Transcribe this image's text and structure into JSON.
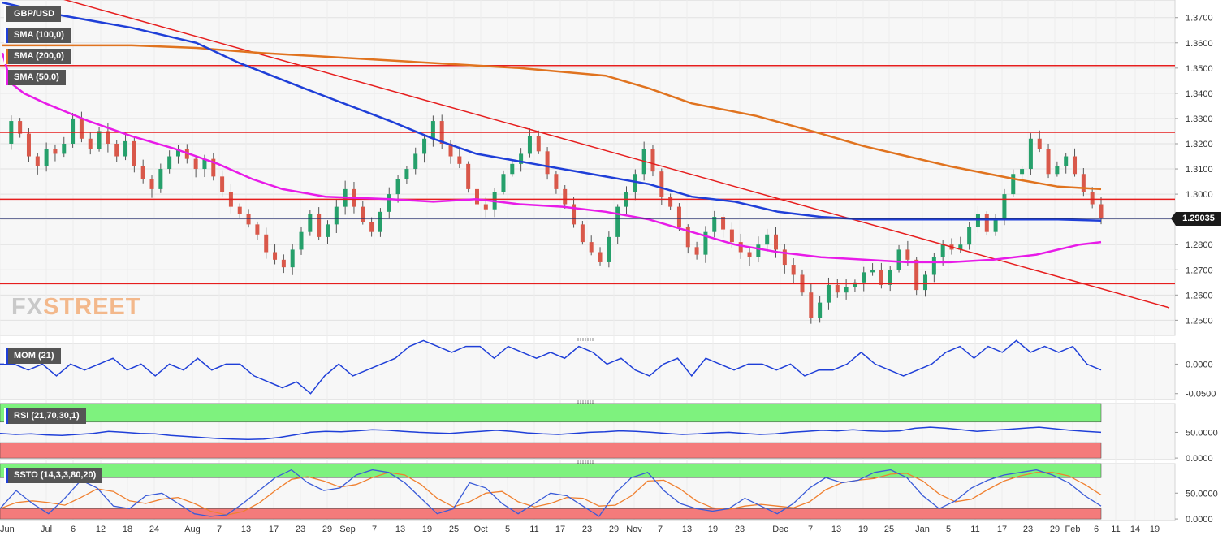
{
  "legend": {
    "symbol": "GBP/USD",
    "sma100": "SMA (100,0)",
    "sma200": "SMA (200,0)",
    "sma50": "SMA (50,0)",
    "mom": "MOM (21)",
    "rsi": "RSI (21,70,30,1)",
    "ssto": "SSTO (14,3,3,80,20)"
  },
  "logo": {
    "part1": "FX",
    "part2": "STREET"
  },
  "last_price": "1.29035",
  "colors": {
    "up": "#26a06b",
    "down": "#d9584a",
    "sma100": "#1f3fd8",
    "sma200": "#e0731f",
    "sma50": "#e81be8",
    "hline": "#e61e1e",
    "overbought": "#7ef27e",
    "oversold": "#f47b7b",
    "mom": "#1f3fd8",
    "ssto_k": "#3a5bd8",
    "ssto_d": "#f08030"
  },
  "chart_data": [
    {
      "type": "candlestick",
      "title": "GBP/USD",
      "ylim": [
        1.244,
        1.377
      ],
      "y_ticks": [
        "1.2500",
        "1.2600",
        "1.2700",
        "1.2800",
        "1.2900",
        "1.3000",
        "1.3100",
        "1.3200",
        "1.3300",
        "1.3400",
        "1.3500",
        "1.3600",
        "1.3700"
      ],
      "x_ticks": [
        "Jun",
        "Jul",
        "6",
        "12",
        "18",
        "24",
        "Aug",
        "7",
        "13",
        "17",
        "23",
        "29",
        "Sep",
        "7",
        "13",
        "19",
        "25",
        "Oct",
        "5",
        "11",
        "17",
        "23",
        "29",
        "Nov",
        "7",
        "13",
        "19",
        "23",
        "Dec",
        "7",
        "13",
        "19",
        "25",
        "Jan",
        "5",
        "11",
        "17",
        "23",
        "29",
        "Feb",
        "6",
        "11",
        "14",
        "19"
      ],
      "close_path": [
        1.32,
        1.329,
        1.324,
        1.315,
        1.311,
        1.318,
        1.316,
        1.32,
        1.33,
        1.322,
        1.318,
        1.325,
        1.32,
        1.315,
        1.321,
        1.311,
        1.306,
        1.302,
        1.31,
        1.315,
        1.318,
        1.314,
        1.31,
        1.314,
        1.307,
        1.301,
        1.295,
        1.292,
        1.288,
        1.284,
        1.277,
        1.274,
        1.271,
        1.278,
        1.285,
        1.292,
        1.283,
        1.288,
        1.295,
        1.302,
        1.295,
        1.289,
        1.285,
        1.293,
        1.3,
        1.306,
        1.31,
        1.316,
        1.322,
        1.329,
        1.32,
        1.315,
        1.312,
        1.302,
        1.296,
        1.294,
        1.301,
        1.308,
        1.312,
        1.316,
        1.323,
        1.317,
        1.308,
        1.302,
        1.296,
        1.288,
        1.281,
        1.277,
        1.273,
        1.283,
        1.295,
        1.301,
        1.308,
        1.318,
        1.309,
        1.299,
        1.295,
        1.287,
        1.279,
        1.276,
        1.285,
        1.291,
        1.286,
        1.281,
        1.277,
        1.275,
        1.28,
        1.284,
        1.278,
        1.272,
        1.268,
        1.261,
        1.251,
        1.257,
        1.264,
        1.261,
        1.263,
        1.265,
        1.269,
        1.27,
        1.264,
        1.27,
        1.278,
        1.274,
        1.262,
        1.268,
        1.275,
        1.28,
        1.278,
        1.28,
        1.287,
        1.292,
        1.285,
        1.29,
        1.3,
        1.308,
        1.31,
        1.322,
        1.318,
        1.308,
        1.311,
        1.315,
        1.308,
        1.301,
        1.296,
        1.2903
      ],
      "sma50": [
        [
          0,
          1.356
        ],
        [
          2,
          1.344
        ],
        [
          5,
          1.34
        ],
        [
          10,
          1.336
        ],
        [
          20,
          1.329
        ],
        [
          30,
          1.323
        ],
        [
          40,
          1.318
        ],
        [
          50,
          1.312
        ],
        [
          58,
          1.306
        ],
        [
          65,
          1.302
        ],
        [
          75,
          1.299
        ],
        [
          90,
          1.298
        ],
        [
          100,
          1.297
        ],
        [
          110,
          1.298
        ],
        [
          115,
          1.297
        ],
        [
          120,
          1.296
        ],
        [
          130,
          1.295
        ],
        [
          140,
          1.293
        ],
        [
          150,
          1.29
        ],
        [
          160,
          1.285
        ],
        [
          170,
          1.28
        ],
        [
          180,
          1.277
        ],
        [
          190,
          1.275
        ],
        [
          200,
          1.274
        ],
        [
          210,
          1.273
        ],
        [
          220,
          1.273
        ],
        [
          230,
          1.274
        ],
        [
          240,
          1.276
        ],
        [
          250,
          1.28
        ],
        [
          255,
          1.281
        ]
      ],
      "sma100": [
        [
          0,
          1.376
        ],
        [
          10,
          1.372
        ],
        [
          30,
          1.366
        ],
        [
          45,
          1.36
        ],
        [
          55,
          1.352
        ],
        [
          70,
          1.342
        ],
        [
          90,
          1.329
        ],
        [
          100,
          1.322
        ],
        [
          110,
          1.316
        ],
        [
          120,
          1.313
        ],
        [
          130,
          1.31
        ],
        [
          140,
          1.307
        ],
        [
          150,
          1.304
        ],
        [
          160,
          1.299
        ],
        [
          170,
          1.297
        ],
        [
          180,
          1.293
        ],
        [
          190,
          1.291
        ],
        [
          200,
          1.29
        ],
        [
          215,
          1.29
        ],
        [
          235,
          1.29
        ],
        [
          245,
          1.29
        ],
        [
          255,
          1.2895
        ]
      ],
      "sma200": [
        [
          0,
          1.359
        ],
        [
          20,
          1.359
        ],
        [
          30,
          1.359
        ],
        [
          45,
          1.358
        ],
        [
          60,
          1.356
        ],
        [
          80,
          1.354
        ],
        [
          100,
          1.352
        ],
        [
          120,
          1.35
        ],
        [
          140,
          1.347
        ],
        [
          150,
          1.342
        ],
        [
          160,
          1.336
        ],
        [
          175,
          1.331
        ],
        [
          190,
          1.324
        ],
        [
          200,
          1.319
        ],
        [
          210,
          1.315
        ],
        [
          220,
          1.311
        ],
        [
          235,
          1.306
        ],
        [
          245,
          1.303
        ],
        [
          255,
          1.302
        ]
      ],
      "horizontal_levels": [
        1.351,
        1.3245,
        1.298,
        1.2645
      ],
      "trendline": [
        [
          0,
          1.384
        ],
        [
          275,
          1.255
        ]
      ]
    },
    {
      "type": "line",
      "title": "MOM (21)",
      "ylim": [
        -0.06,
        0.035
      ],
      "y_ticks": [
        "0.0000",
        "-0.0500"
      ],
      "values": [
        0.0,
        0.0,
        -0.01,
        0.0,
        -0.02,
        0.0,
        -0.01,
        0.0,
        0.01,
        -0.01,
        0.0,
        -0.02,
        0.0,
        -0.01,
        0.01,
        -0.01,
        0.0,
        0.0,
        -0.02,
        -0.03,
        -0.04,
        -0.03,
        -0.05,
        -0.02,
        0.0,
        -0.02,
        -0.01,
        0.0,
        0.01,
        0.03,
        0.04,
        0.03,
        0.02,
        0.03,
        0.03,
        0.01,
        0.03,
        0.02,
        0.01,
        0.02,
        0.01,
        0.03,
        0.02,
        0.0,
        0.01,
        -0.01,
        -0.02,
        0.0,
        0.01,
        -0.02,
        0.01,
        0.0,
        -0.01,
        0.0,
        0.0,
        -0.01,
        0.0,
        -0.02,
        -0.01,
        -0.01,
        0.0,
        0.02,
        0.0,
        -0.01,
        -0.02,
        -0.01,
        0.0,
        0.02,
        0.03,
        0.01,
        0.03,
        0.02,
        0.04,
        0.02,
        0.03,
        0.02,
        0.03,
        0.0,
        -0.01
      ]
    },
    {
      "type": "line",
      "title": "RSI (21,70,30,1)",
      "ylim": [
        -3,
        106
      ],
      "y_ticks": [
        "50.0000",
        "0.0000"
      ],
      "bands": {
        "overbought": [
          70,
          106
        ],
        "oversold": [
          0,
          30
        ]
      },
      "values": [
        48,
        46,
        47,
        45,
        44,
        46,
        48,
        52,
        50,
        48,
        47,
        44,
        42,
        40,
        38,
        37,
        36,
        37,
        40,
        45,
        50,
        52,
        51,
        53,
        55,
        54,
        52,
        50,
        49,
        48,
        50,
        52,
        54,
        52,
        49,
        47,
        46,
        48,
        50,
        51,
        53,
        52,
        50,
        48,
        46,
        47,
        49,
        50,
        48,
        46,
        47,
        50,
        52,
        54,
        53,
        55,
        53,
        52,
        53,
        58,
        60,
        58,
        55,
        52,
        54,
        56,
        58,
        60,
        57,
        54,
        52,
        50
      ]
    },
    {
      "type": "line",
      "title": "SSTO (14,3,3,80,20)",
      "ylim": [
        -3,
        107
      ],
      "y_ticks": [
        "50.0000",
        "0.0000"
      ],
      "bands": {
        "overbought": [
          80,
          107
        ],
        "oversold": [
          0,
          20
        ]
      },
      "k_values": [
        20,
        55,
        30,
        10,
        40,
        75,
        60,
        25,
        20,
        45,
        50,
        30,
        10,
        5,
        8,
        30,
        55,
        80,
        95,
        70,
        55,
        60,
        85,
        95,
        90,
        70,
        40,
        10,
        20,
        70,
        60,
        30,
        10,
        30,
        50,
        45,
        25,
        5,
        50,
        80,
        90,
        55,
        30,
        20,
        15,
        20,
        40,
        25,
        10,
        30,
        60,
        80,
        70,
        75,
        90,
        95,
        80,
        45,
        20,
        35,
        60,
        75,
        85,
        90,
        95,
        85,
        70,
        45,
        25
      ]
    }
  ]
}
